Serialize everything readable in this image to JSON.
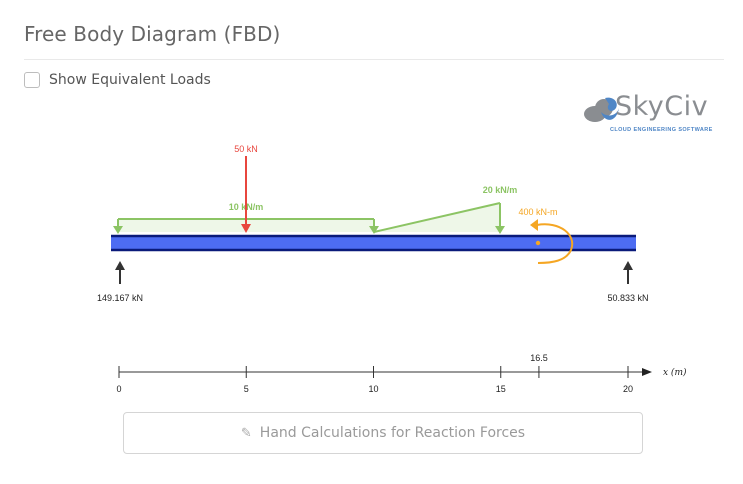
{
  "header": {
    "title": "Free Body Diagram (FBD)"
  },
  "options": {
    "show_equivalent_loads_label": "Show Equivalent Loads",
    "show_equivalent_loads_checked": false
  },
  "logo": {
    "name": "SkyCiv",
    "tagline": "CLOUD ENGINEERING SOFTWARE"
  },
  "diagram": {
    "point_load": {
      "label": "50 kN",
      "position_m": 5,
      "color": "#e8463e"
    },
    "udl": {
      "label": "10 kN/m",
      "start_m": 0,
      "end_m": 10,
      "color": "#8cc464"
    },
    "triangular_load": {
      "label": "20 kN/m",
      "start_m": 10,
      "end_m": 15,
      "start_kNm": 0,
      "end_kNm": 20,
      "color": "#8cc464"
    },
    "moment": {
      "label": "400 kN-m",
      "position_m": 16.5,
      "color": "#f5a623"
    },
    "reactions": [
      {
        "label": "149.167 kN",
        "position_m": 0
      },
      {
        "label": "50.833 kN",
        "position_m": 20
      }
    ],
    "beam": {
      "length_m": 20,
      "color": "#4d6cf2",
      "edge_color": "#0a1a7a"
    },
    "axis": {
      "ticks": [
        "0",
        "5",
        "10",
        "15",
        "20"
      ],
      "tick_values": [
        0,
        5,
        10,
        15,
        20
      ],
      "marker_label": "16.5",
      "marker_value": 16.5,
      "unit_label": "x (m)"
    }
  },
  "actions": {
    "hand_calc_label": "Hand Calculations for Reaction Forces"
  }
}
